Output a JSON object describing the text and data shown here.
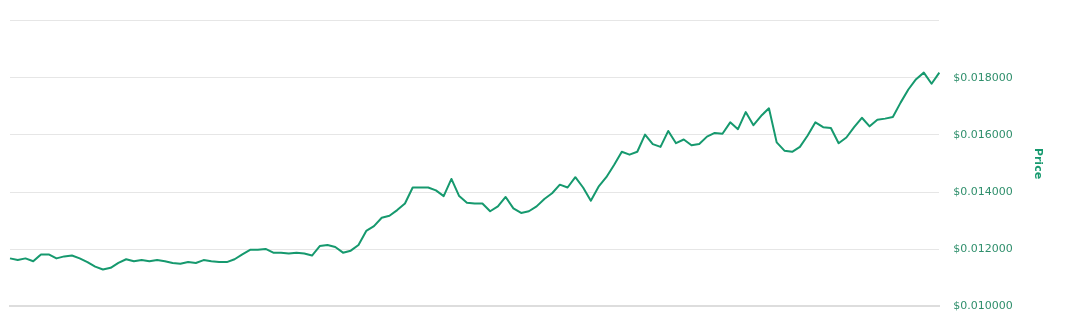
{
  "chart_data": {
    "type": "line",
    "ylabel": "Price",
    "categories": [
      null,
      null,
      null,
      null,
      null,
      null,
      null,
      null,
      null,
      null,
      null,
      null,
      null,
      null,
      null,
      null,
      null,
      null,
      null,
      null,
      null,
      null,
      null,
      null,
      null,
      null,
      null,
      null,
      null,
      null,
      null,
      null,
      null,
      null,
      null,
      null,
      null,
      null,
      null,
      null,
      null,
      null,
      null,
      null,
      null,
      null,
      null,
      null,
      null,
      null,
      null,
      null,
      null,
      null,
      null,
      null,
      null,
      null,
      null,
      null,
      null,
      null,
      null,
      null,
      null,
      null,
      null,
      null,
      null,
      null,
      null,
      null,
      null,
      null,
      null,
      null,
      null,
      null,
      null,
      null,
      null,
      null,
      null,
      null,
      null,
      null,
      null,
      null,
      null,
      null,
      null,
      null,
      null,
      null,
      null,
      null,
      null,
      null,
      null,
      null,
      null,
      null,
      null,
      null,
      null,
      null,
      null,
      null,
      null,
      null,
      null,
      null,
      null,
      null,
      null,
      null,
      null,
      null,
      null,
      null,
      null
    ],
    "series": [
      {
        "color": "#16996e",
        "values": [
          0.01168,
          0.01162,
          0.01168,
          0.01158,
          0.01182,
          0.01182,
          0.01168,
          0.01175,
          0.01178,
          0.01168,
          0.01155,
          0.01139,
          0.01129,
          0.01135,
          0.01152,
          0.01165,
          0.01158,
          0.01162,
          0.01158,
          0.01162,
          0.01158,
          0.01152,
          0.01149,
          0.01155,
          0.01152,
          0.01162,
          0.01158,
          0.01155,
          0.01155,
          0.01165,
          0.01182,
          0.01198,
          0.01198,
          0.01201,
          0.01188,
          0.01188,
          0.01185,
          0.01188,
          0.01185,
          0.01178,
          0.01211,
          0.01215,
          0.01208,
          0.01188,
          0.01195,
          0.01215,
          0.01264,
          0.01281,
          0.0131,
          0.01317,
          0.01337,
          0.0136,
          0.01416,
          0.01416,
          0.01416,
          0.01406,
          0.01386,
          0.01446,
          0.01386,
          0.01363,
          0.0136,
          0.0136,
          0.01333,
          0.0135,
          0.01383,
          0.01343,
          0.01327,
          0.01333,
          0.0135,
          0.01376,
          0.01396,
          0.01426,
          0.01416,
          0.01452,
          0.01416,
          0.0137,
          0.01419,
          0.01452,
          0.01495,
          0.01541,
          0.01531,
          0.01541,
          0.01601,
          0.01568,
          0.01558,
          0.01614,
          0.01571,
          0.01584,
          0.01564,
          0.01568,
          0.01594,
          0.01607,
          0.01604,
          0.01644,
          0.0162,
          0.0168,
          0.01634,
          0.01667,
          0.01693,
          0.01574,
          0.01545,
          0.01541,
          0.01558,
          0.01598,
          0.01644,
          0.01627,
          0.01624,
          0.01571,
          0.01591,
          0.01627,
          0.0166,
          0.0163,
          0.01653,
          0.01657,
          0.01663,
          0.01713,
          0.01759,
          0.01795,
          0.01818,
          0.01779,
          0.01818
        ]
      }
    ],
    "ylim": [
      0.01,
      0.02
    ],
    "yticks": [
      {
        "value": 0.01,
        "label": "$0.010000"
      },
      {
        "value": 0.012,
        "label": "$0.012000"
      },
      {
        "value": 0.014,
        "label": "$0.014000"
      },
      {
        "value": 0.016,
        "label": "$0.016000"
      },
      {
        "value": 0.018,
        "label": "$0.018000"
      },
      {
        "value": 0.02,
        "label": null
      }
    ],
    "grid": "y",
    "tick_labels": "y",
    "legend": false,
    "marker": "none",
    "line_style": "solid"
  }
}
